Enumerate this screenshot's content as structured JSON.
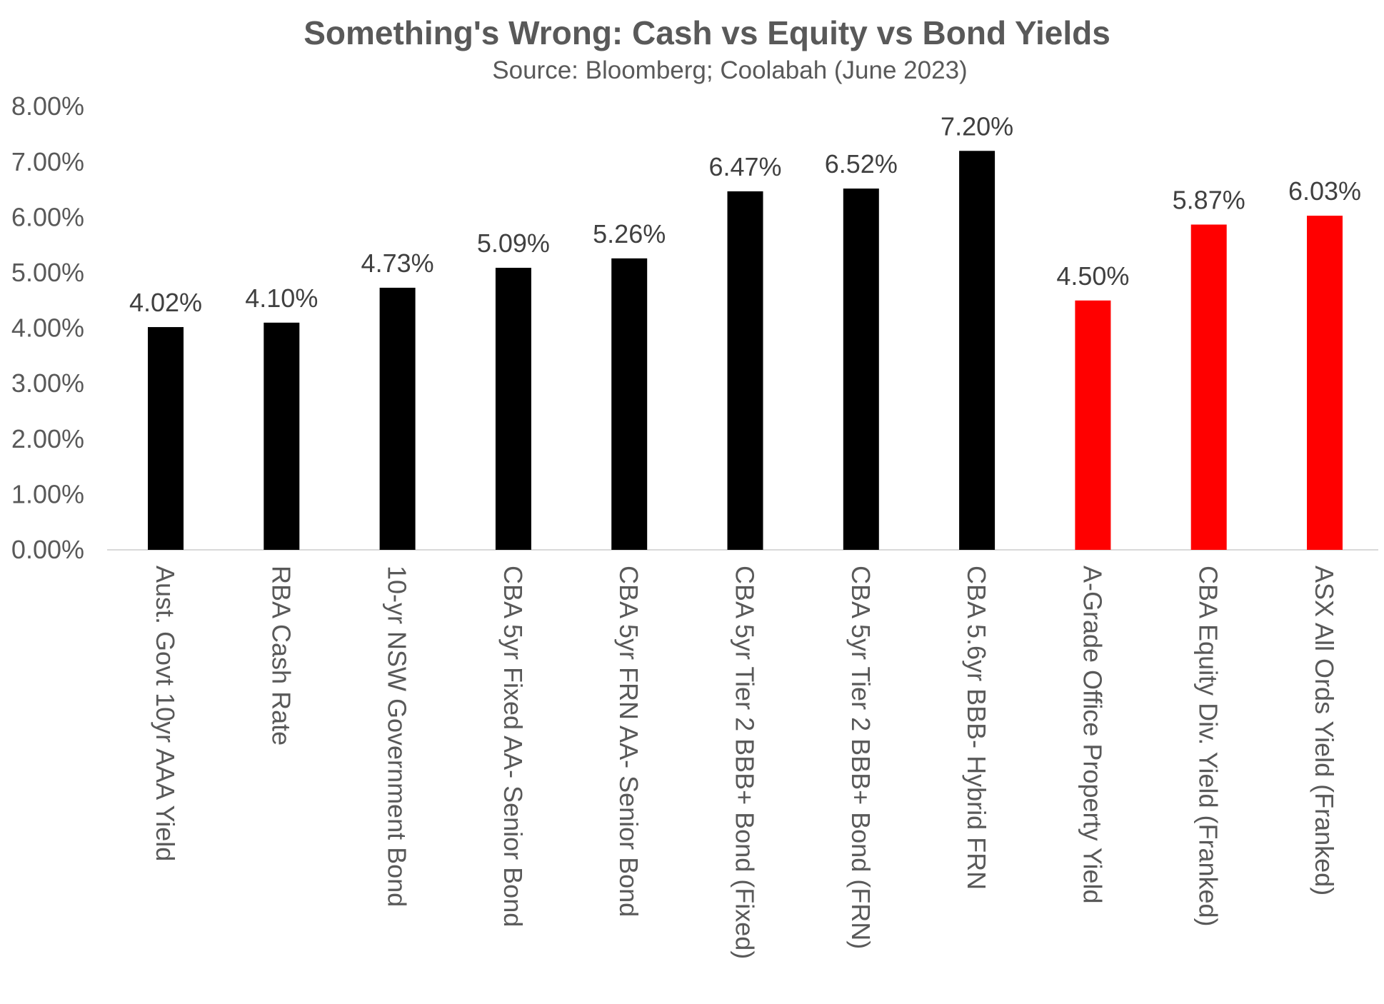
{
  "chart_data": {
    "type": "bar",
    "title": "Something's Wrong: Cash vs Equity vs Bond Yields",
    "subtitle": "Source: Bloomberg; Coolabah (June 2023)",
    "xlabel": "",
    "ylabel": "",
    "ylim": [
      0,
      8
    ],
    "yticks": [
      "0.00%",
      "1.00%",
      "2.00%",
      "3.00%",
      "4.00%",
      "5.00%",
      "6.00%",
      "7.00%",
      "8.00%"
    ],
    "grid": false,
    "legend": "none",
    "colors": {
      "debt": "#000000",
      "equity": "#ff0000",
      "axis": "#d9d9d9"
    },
    "categories": [
      "Aust. Govt 10yr AAA Yield",
      "RBA Cash Rate",
      "10-yr NSW Government Bond",
      "CBA 5yr Fixed AA- Senior Bond",
      "CBA 5yr FRN AA- Senior Bond",
      "CBA 5yr Tier 2 BBB+ Bond (Fixed)",
      "CBA 5yr Tier 2 BBB+ Bond (FRN)",
      "CBA 5.6yr BBB- Hybrid FRN",
      "A-Grade Office Property Yield",
      "CBA Equity Div. Yield (Franked)",
      "ASX All Ords Yield (Franked)"
    ],
    "values": [
      4.02,
      4.1,
      4.73,
      5.09,
      5.26,
      6.47,
      6.52,
      7.2,
      4.5,
      5.87,
      6.03
    ],
    "data_labels": [
      "4.02%",
      "4.10%",
      "4.73%",
      "5.09%",
      "5.26%",
      "6.47%",
      "6.52%",
      "7.20%",
      "4.50%",
      "5.87%",
      "6.03%"
    ],
    "bar_colors": [
      "#000000",
      "#000000",
      "#000000",
      "#000000",
      "#000000",
      "#000000",
      "#000000",
      "#000000",
      "#ff0000",
      "#ff0000",
      "#ff0000"
    ]
  }
}
